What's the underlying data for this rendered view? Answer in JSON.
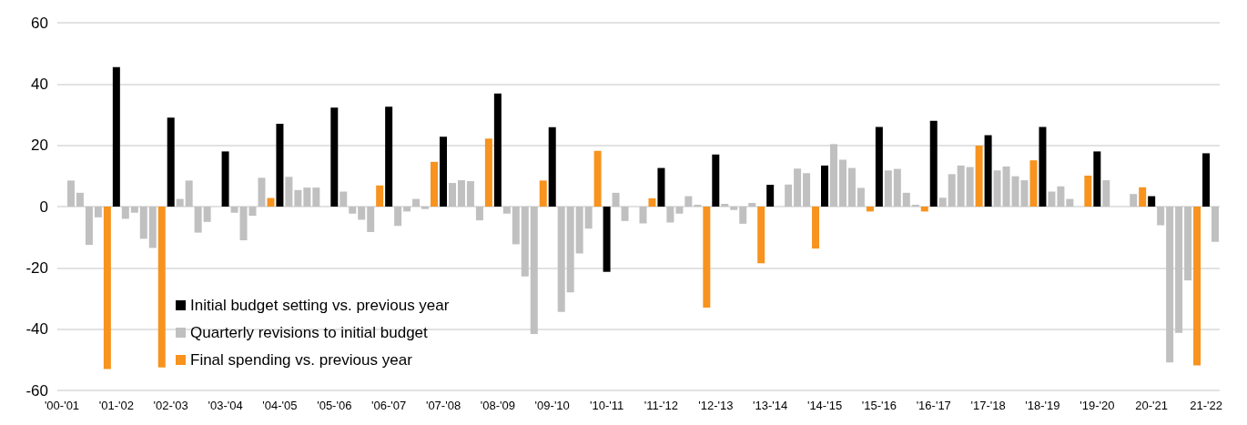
{
  "chart_data": {
    "type": "bar",
    "categories": [
      "'00-'01",
      null,
      null,
      null,
      null,
      null,
      "'01-'02",
      null,
      null,
      null,
      null,
      null,
      "'02-'03",
      null,
      null,
      null,
      null,
      null,
      "'03-'04",
      null,
      null,
      null,
      null,
      null,
      "'04-'05",
      null,
      null,
      null,
      null,
      null,
      "'05-'06",
      null,
      null,
      null,
      null,
      null,
      "'06-'07",
      null,
      null,
      null,
      null,
      null,
      "'07-'08",
      null,
      null,
      null,
      null,
      null,
      "'08-'09",
      null,
      null,
      null,
      null,
      null,
      "'09-'10",
      null,
      null,
      null,
      null,
      null,
      "'10-'11",
      null,
      null,
      null,
      null,
      null,
      "'11-'12",
      null,
      null,
      null,
      null,
      null,
      "'12-'13",
      null,
      null,
      null,
      null,
      null,
      "'13-'14",
      null,
      null,
      null,
      null,
      null,
      "'14-'15",
      null,
      null,
      null,
      null,
      null,
      "'15-'16",
      null,
      null,
      null,
      null,
      null,
      "'16-'17",
      null,
      null,
      null,
      null,
      null,
      "'17-'18",
      null,
      null,
      null,
      null,
      null,
      "'18-'19",
      null,
      null,
      null,
      null,
      null,
      "'19-'20",
      null,
      null,
      null,
      null,
      null,
      "20-'21",
      null,
      null,
      null,
      null,
      null,
      "21-'22",
      null
    ],
    "series": [
      {
        "name": "Initial budget setting vs. previous year",
        "color": "#000000",
        "values": [
          null,
          null,
          null,
          null,
          null,
          null,
          45.5,
          null,
          null,
          null,
          null,
          null,
          29,
          null,
          null,
          null,
          null,
          null,
          18,
          null,
          null,
          null,
          null,
          null,
          27,
          null,
          null,
          null,
          null,
          null,
          32.3,
          null,
          null,
          null,
          null,
          null,
          32.6,
          null,
          null,
          null,
          null,
          null,
          22.8,
          null,
          null,
          null,
          null,
          null,
          36.9,
          null,
          null,
          null,
          null,
          null,
          25.9,
          null,
          null,
          null,
          null,
          null,
          -21.3,
          null,
          null,
          null,
          null,
          null,
          12.6,
          null,
          null,
          null,
          null,
          null,
          17,
          null,
          null,
          null,
          null,
          null,
          7.1,
          null,
          null,
          null,
          null,
          null,
          13.4,
          null,
          null,
          null,
          null,
          null,
          26,
          null,
          null,
          null,
          null,
          null,
          28,
          null,
          null,
          null,
          null,
          null,
          23.3,
          null,
          null,
          null,
          null,
          null,
          26,
          null,
          null,
          null,
          null,
          null,
          18,
          null,
          null,
          null,
          null,
          null,
          3.4,
          null,
          null,
          null,
          null,
          null,
          17.4,
          null
        ]
      },
      {
        "name": "Quarterly revisions to initial budget",
        "color": "#c0c0c0",
        "values": [
          null,
          8.5,
          4.5,
          -12.5,
          -3.5,
          null,
          null,
          -4,
          -2,
          -10.5,
          -13.5,
          null,
          null,
          2.5,
          8.5,
          -8.5,
          -5,
          null,
          null,
          -2,
          -11,
          -3,
          9.4,
          null,
          null,
          9.7,
          5.4,
          6.2,
          6.2,
          null,
          null,
          4.9,
          -2.3,
          -4.3,
          -8.3,
          null,
          null,
          -6.3,
          -1.6,
          2.5,
          -0.8,
          null,
          null,
          7.7,
          8.6,
          8.3,
          -4.5,
          null,
          null,
          -2.3,
          -12.3,
          -22.8,
          -41.6,
          null,
          null,
          -34.4,
          -28,
          -15.3,
          -7.2,
          null,
          null,
          4.5,
          -4.7,
          null,
          -5.5,
          null,
          null,
          -5.2,
          -2.3,
          3.4,
          0.6,
          null,
          null,
          0.9,
          -1.1,
          -5.6,
          1.2,
          null,
          null,
          null,
          7.2,
          12.4,
          10.9,
          null,
          null,
          20.4,
          15.3,
          12.6,
          6.1,
          null,
          null,
          11.8,
          12.3,
          4.5,
          0.6,
          null,
          null,
          2.9,
          10.6,
          13.4,
          12.9,
          null,
          null,
          11.8,
          13.1,
          9.9,
          8.6,
          null,
          null,
          4.9,
          6.6,
          2.5,
          null,
          null,
          null,
          8.6,
          null,
          null,
          4.1,
          null,
          null,
          -6.1,
          -50.9,
          -41.2,
          -24.1,
          null,
          null,
          -11.5
        ]
      },
      {
        "name": "Final spending vs. previous year",
        "color": "#f7931e",
        "values": [
          null,
          null,
          null,
          null,
          null,
          -53,
          null,
          null,
          null,
          null,
          null,
          -52.5,
          null,
          null,
          null,
          null,
          null,
          null,
          null,
          null,
          null,
          null,
          null,
          2.8,
          null,
          null,
          null,
          null,
          null,
          null,
          null,
          null,
          null,
          null,
          null,
          6.9,
          null,
          null,
          null,
          null,
          null,
          14.6,
          null,
          null,
          null,
          null,
          null,
          22.2,
          null,
          null,
          null,
          null,
          null,
          8.5,
          null,
          null,
          null,
          null,
          null,
          18.2,
          null,
          null,
          null,
          null,
          null,
          2.7,
          null,
          null,
          null,
          null,
          null,
          -33,
          null,
          null,
          null,
          null,
          null,
          -18.5,
          null,
          null,
          null,
          null,
          null,
          -13.7,
          null,
          null,
          null,
          null,
          null,
          -1.6,
          null,
          null,
          null,
          null,
          null,
          -1.6,
          null,
          null,
          null,
          null,
          null,
          19.9,
          null,
          null,
          null,
          null,
          null,
          15.1,
          null,
          null,
          null,
          null,
          null,
          10.1,
          null,
          null,
          null,
          null,
          null,
          6.3,
          null,
          null,
          null,
          null,
          null,
          -51.8,
          null,
          null
        ]
      }
    ],
    "ylim": [
      -60,
      60
    ],
    "yticks": [
      -60,
      -40,
      -20,
      0,
      20,
      40,
      60
    ],
    "grid": "y",
    "legend": "bottom left"
  }
}
